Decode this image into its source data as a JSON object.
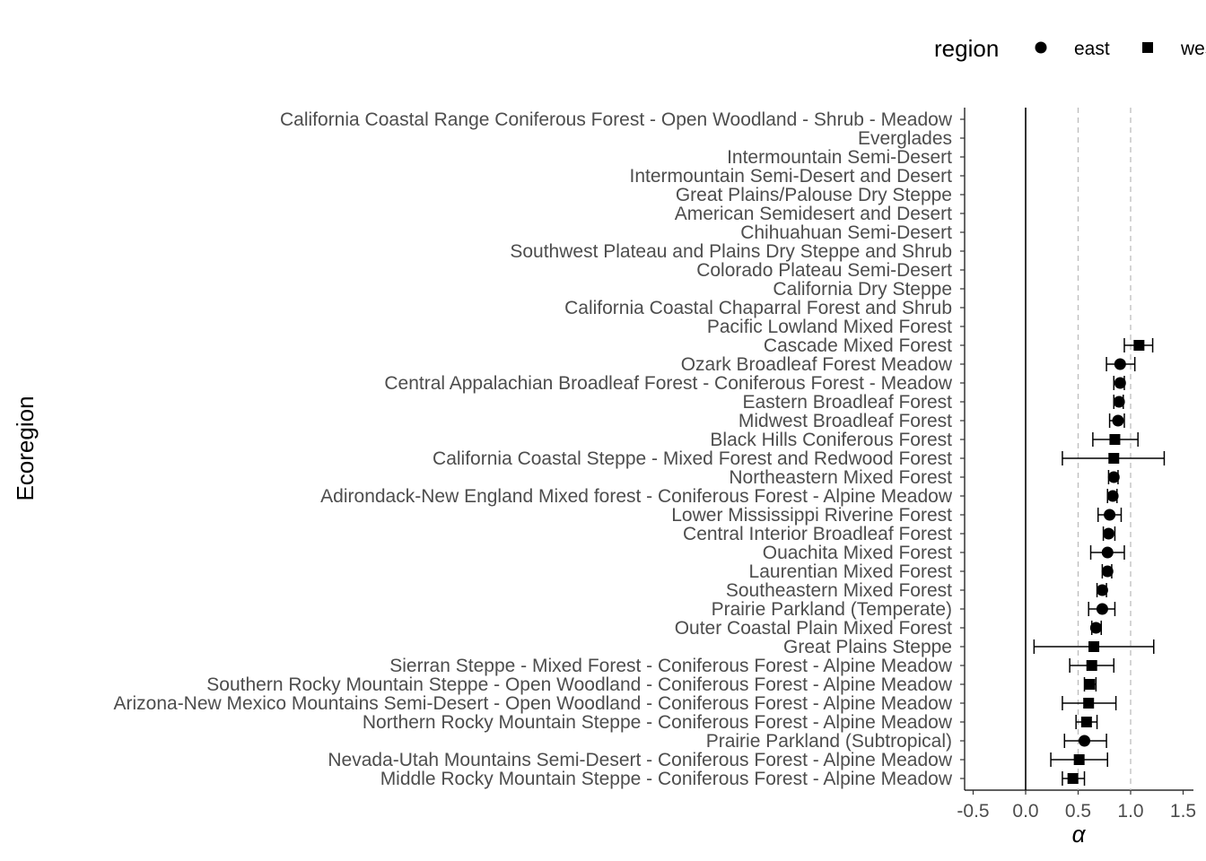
{
  "chart_data": {
    "type": "scatter",
    "subtype": "point-range (dot-and-whisker)",
    "orientation": "horizontal",
    "xlabel": "α",
    "ylabel": "Ecoregion",
    "xlim": [
      -0.57,
      1.58
    ],
    "x_ticks": [
      -0.5,
      0.0,
      0.5,
      1.0,
      1.5
    ],
    "x_tick_labels": [
      "-0.5",
      "0.0",
      "0.5",
      "1.0",
      "1.5"
    ],
    "reference_lines": [
      {
        "x": 0,
        "style": "solid",
        "color": "#000000"
      },
      {
        "x": 0.5,
        "style": "dashed",
        "color": "#bdbdbd"
      },
      {
        "x": 1.0,
        "style": "dashed",
        "color": "#bdbdbd"
      }
    ],
    "grid": false,
    "legend": {
      "title": "region",
      "position": "top",
      "items": [
        {
          "label": "east",
          "shape": "circle"
        },
        {
          "label": "west",
          "shape": "square"
        }
      ]
    },
    "categories": [
      "California Coastal Range Coniferous Forest - Open Woodland - Shrub - Meadow",
      "Everglades",
      "Intermountain Semi-Desert",
      "Intermountain Semi-Desert and Desert",
      "Great Plains/Palouse Dry Steppe",
      "American Semidesert and Desert",
      "Chihuahuan Semi-Desert",
      "Southwest Plateau and Plains Dry Steppe and Shrub",
      "Colorado Plateau Semi-Desert",
      "California Dry Steppe",
      "California Coastal Chaparral Forest and Shrub",
      "Pacific Lowland Mixed Forest",
      "Cascade Mixed Forest",
      "Ozark Broadleaf Forest Meadow",
      "Central Appalachian Broadleaf Forest - Coniferous Forest - Meadow",
      "Eastern Broadleaf Forest",
      "Midwest Broadleaf Forest",
      "Black Hills Coniferous Forest",
      "California Coastal Steppe - Mixed Forest and Redwood Forest",
      "Northeastern Mixed Forest",
      "Adirondack-New England Mixed forest - Coniferous Forest - Alpine Meadow",
      "Lower Mississippi Riverine Forest",
      "Central Interior Broadleaf Forest",
      "Ouachita Mixed Forest",
      "Laurentian Mixed Forest",
      "Southeastern Mixed Forest",
      "Prairie Parkland (Temperate)",
      "Outer Coastal Plain Mixed Forest",
      "Great Plains Steppe",
      "Sierran Steppe - Mixed Forest - Coniferous Forest - Alpine Meadow",
      "Southern Rocky Mountain Steppe - Open Woodland - Coniferous Forest - Alpine Meadow",
      "Arizona-New Mexico Mountains Semi-Desert - Open Woodland - Coniferous Forest - Alpine Meadow",
      "Northern Rocky Mountain Steppe - Coniferous Forest - Alpine Meadow",
      "Prairie Parkland (Subtropical)",
      "Nevada-Utah Mountains Semi-Desert - Coniferous Forest - Alpine Meadow",
      "Middle Rocky Mountain Steppe - Coniferous Forest - Alpine Meadow"
    ],
    "points": [
      {
        "category": "Cascade Mixed Forest",
        "region": "west",
        "estimate": 1.08,
        "low": 0.94,
        "high": 1.21
      },
      {
        "category": "Ozark Broadleaf Forest Meadow",
        "region": "east",
        "estimate": 0.9,
        "low": 0.77,
        "high": 1.04
      },
      {
        "category": "Central Appalachian Broadleaf Forest - Coniferous Forest - Meadow",
        "region": "east",
        "estimate": 0.9,
        "low": 0.84,
        "high": 0.94
      },
      {
        "category": "Eastern Broadleaf Forest",
        "region": "east",
        "estimate": 0.89,
        "low": 0.84,
        "high": 0.93
      },
      {
        "category": "Midwest Broadleaf Forest",
        "region": "east",
        "estimate": 0.88,
        "low": 0.8,
        "high": 0.94
      },
      {
        "category": "Black Hills Coniferous Forest",
        "region": "west",
        "estimate": 0.85,
        "low": 0.64,
        "high": 1.07
      },
      {
        "category": "California Coastal Steppe - Mixed Forest and Redwood Forest",
        "region": "west",
        "estimate": 0.84,
        "low": 0.35,
        "high": 1.32
      },
      {
        "category": "Northeastern Mixed Forest",
        "region": "east",
        "estimate": 0.84,
        "low": 0.79,
        "high": 0.88
      },
      {
        "category": "Adirondack-New England Mixed forest - Coniferous Forest - Alpine Meadow",
        "region": "east",
        "estimate": 0.83,
        "low": 0.78,
        "high": 0.87
      },
      {
        "category": "Lower Mississippi Riverine Forest",
        "region": "east",
        "estimate": 0.8,
        "low": 0.69,
        "high": 0.91
      },
      {
        "category": "Central Interior Broadleaf Forest",
        "region": "east",
        "estimate": 0.79,
        "low": 0.74,
        "high": 0.85
      },
      {
        "category": "Ouachita Mixed Forest",
        "region": "east",
        "estimate": 0.78,
        "low": 0.62,
        "high": 0.94
      },
      {
        "category": "Laurentian Mixed Forest",
        "region": "east",
        "estimate": 0.78,
        "low": 0.73,
        "high": 0.82
      },
      {
        "category": "Southeastern Mixed Forest",
        "region": "east",
        "estimate": 0.73,
        "low": 0.68,
        "high": 0.77
      },
      {
        "category": "Prairie Parkland (Temperate)",
        "region": "east",
        "estimate": 0.73,
        "low": 0.6,
        "high": 0.85
      },
      {
        "category": "Outer Coastal Plain Mixed Forest",
        "region": "east",
        "estimate": 0.67,
        "low": 0.63,
        "high": 0.72
      },
      {
        "category": "Great Plains Steppe",
        "region": "west",
        "estimate": 0.65,
        "low": 0.08,
        "high": 1.22
      },
      {
        "category": "Sierran Steppe - Mixed Forest - Coniferous Forest - Alpine Meadow",
        "region": "west",
        "estimate": 0.63,
        "low": 0.42,
        "high": 0.84
      },
      {
        "category": "Southern Rocky Mountain Steppe - Open Woodland - Coniferous Forest - Alpine Meadow",
        "region": "west",
        "estimate": 0.61,
        "low": 0.56,
        "high": 0.67
      },
      {
        "category": "Arizona-New Mexico Mountains Semi-Desert - Open Woodland - Coniferous Forest - Alpine Meadow",
        "region": "west",
        "estimate": 0.6,
        "low": 0.35,
        "high": 0.86
      },
      {
        "category": "Northern Rocky Mountain Steppe - Coniferous Forest - Alpine Meadow",
        "region": "west",
        "estimate": 0.58,
        "low": 0.48,
        "high": 0.68
      },
      {
        "category": "Prairie Parkland (Subtropical)",
        "region": "east",
        "estimate": 0.56,
        "low": 0.37,
        "high": 0.77
      },
      {
        "category": "Nevada-Utah Mountains Semi-Desert - Coniferous Forest - Alpine Meadow",
        "region": "west",
        "estimate": 0.51,
        "low": 0.24,
        "high": 0.78
      },
      {
        "category": "Middle Rocky Mountain Steppe - Coniferous Forest - Alpine Meadow",
        "region": "west",
        "estimate": 0.45,
        "low": 0.35,
        "high": 0.56
      }
    ]
  }
}
